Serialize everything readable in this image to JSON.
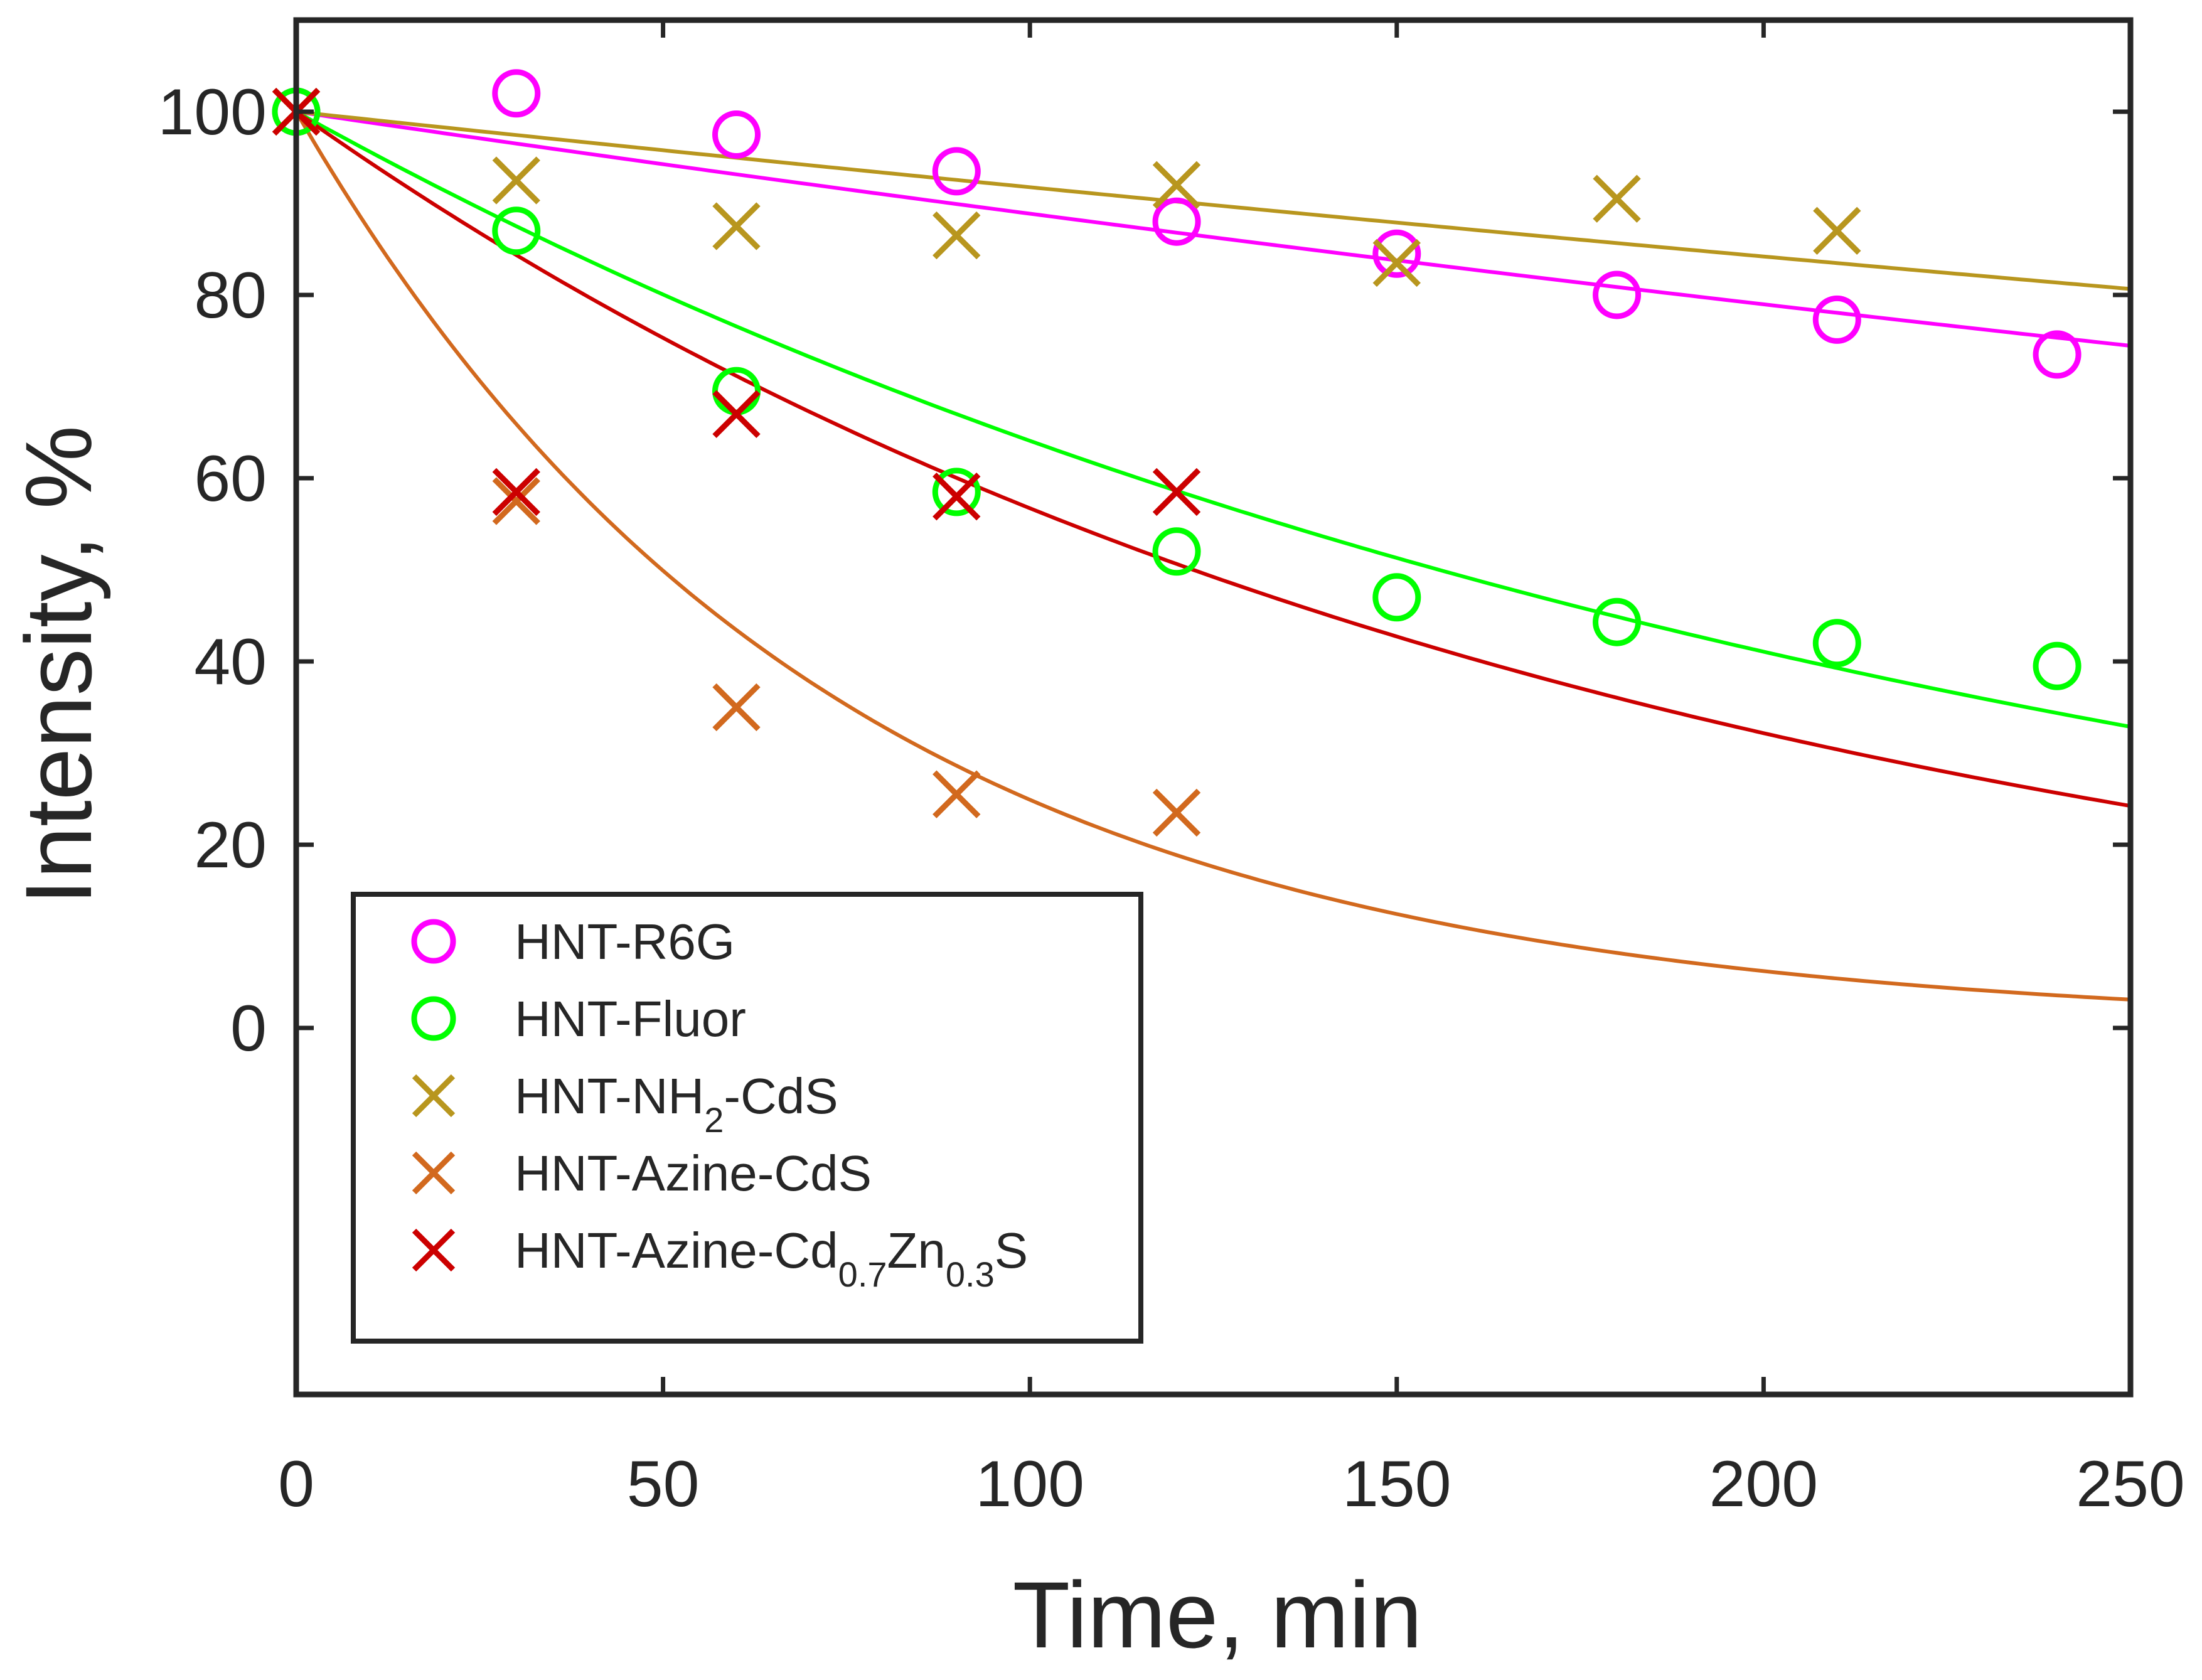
{
  "chart_data": {
    "type": "scatter",
    "title": "",
    "xlabel": "Time, min",
    "ylabel": "Intensity, %",
    "xlim": [
      0,
      250
    ],
    "ylim": [
      -40,
      110
    ],
    "xticks": [
      0,
      50,
      100,
      150,
      200,
      250
    ],
    "yticks": [
      0,
      20,
      40,
      60,
      80,
      100
    ],
    "xtick_labels": [
      "0",
      "50",
      "100",
      "150",
      "200",
      "250"
    ],
    "ytick_labels": [
      "0",
      "20",
      "40",
      "60",
      "80",
      "100"
    ],
    "grid": false,
    "legend_position": "bottom-left",
    "series": [
      {
        "name": "HNT-R6G",
        "legend_parts": [
          {
            "text": "HNT-R6G"
          }
        ],
        "marker": "circle",
        "color": "#ff00ff",
        "x": [
          0,
          30,
          60,
          90,
          120,
          150,
          180,
          210,
          240
        ],
        "y": [
          100,
          102,
          97.5,
          93.5,
          88,
          84.5,
          80,
          77.3,
          73.5
        ],
        "fit": {
          "model": "exponential",
          "k": 0.00118,
          "x": [
            0,
            250
          ]
        }
      },
      {
        "name": "HNT-Fluor",
        "legend_parts": [
          {
            "text": "HNT-Fluor"
          }
        ],
        "marker": "circle",
        "color": "#00ff00",
        "x": [
          0,
          30,
          60,
          90,
          120,
          150,
          180,
          210,
          240
        ],
        "y": [
          100,
          87,
          69.5,
          58.5,
          52,
          47,
          44.3,
          42,
          39.5
        ],
        "fit": {
          "model": "exponential",
          "k": 0.00445,
          "x": [
            0,
            250
          ]
        }
      },
      {
        "name": "HNT-NH2-CdS",
        "legend_parts": [
          {
            "text": "HNT-NH"
          },
          {
            "text": "2",
            "sub": true
          },
          {
            "text": "-CdS"
          }
        ],
        "marker": "x",
        "color": "#b8961e",
        "x": [
          0,
          30,
          60,
          90,
          120,
          150,
          180,
          210
        ],
        "y": [
          100,
          92.5,
          87.5,
          86.5,
          92,
          83.5,
          90.5,
          87
        ],
        "fit": {
          "model": "exponential",
          "k": 0.00086,
          "x": [
            0,
            250
          ]
        }
      },
      {
        "name": "HNT-Azine-CdS",
        "legend_parts": [
          {
            "text": "HNT-Azine-CdS"
          }
        ],
        "marker": "x",
        "color": "#d2691e",
        "x": [
          0,
          30,
          60,
          90,
          120
        ],
        "y": [
          100,
          57.5,
          35,
          25.5,
          23.5
        ],
        "fit": {
          "model": "exponential",
          "k": 0.0139,
          "x": [
            0,
            250
          ]
        }
      },
      {
        "name": "HNT-Azine-Cd0.7Zn0.3S",
        "legend_parts": [
          {
            "text": "HNT-Azine-Cd"
          },
          {
            "text": "0.7",
            "sub": true
          },
          {
            "text": "Zn"
          },
          {
            "text": "0.3",
            "sub": true
          },
          {
            "text": "S"
          }
        ],
        "marker": "x",
        "color": "#cc0000",
        "x": [
          0,
          30,
          60,
          90,
          120
        ],
        "y": [
          100,
          58.5,
          67,
          58,
          58.5
        ],
        "fit": {
          "model": "exponential",
          "k": 0.00567,
          "x": [
            0,
            250
          ]
        }
      }
    ]
  }
}
